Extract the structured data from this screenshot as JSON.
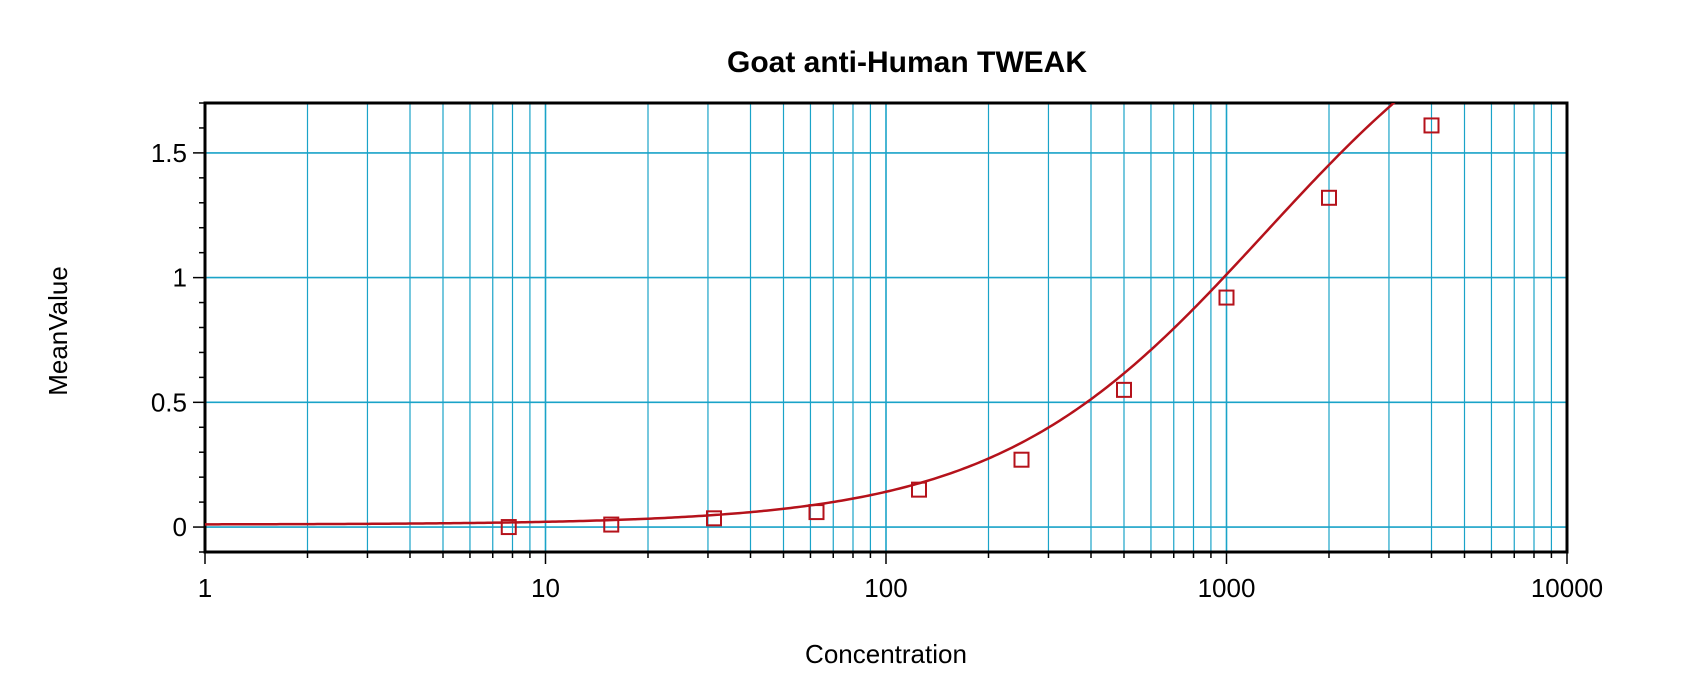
{
  "chart_data": {
    "type": "scatter",
    "title": "Goat anti-Human TWEAK",
    "xlabel": "Concentration",
    "ylabel": "MeanValue",
    "x_scale": "log",
    "xlim": [
      1,
      10000
    ],
    "ylim": [
      -0.1,
      1.7
    ],
    "x_ticks": [
      1,
      10,
      100,
      1000,
      10000
    ],
    "x_tick_labels": [
      "1",
      "10",
      "100",
      "1000",
      "10000"
    ],
    "y_ticks": [
      0,
      0.5,
      1,
      1.5
    ],
    "y_tick_labels": [
      "0",
      "0.5",
      "1",
      "1.5"
    ],
    "grid": true,
    "colors": {
      "grid": "#1aa3c8",
      "series": "#b5121b",
      "frame": "#000000"
    },
    "series": [
      {
        "kind": "points",
        "marker": "square",
        "x": [
          7.8,
          15.6,
          31.25,
          62.5,
          125,
          250,
          500,
          1000,
          2000,
          4000
        ],
        "y": [
          0.0,
          0.01,
          0.035,
          0.06,
          0.15,
          0.27,
          0.55,
          0.92,
          1.32,
          1.61
        ]
      },
      {
        "kind": "fitted-curve",
        "model": "4PL",
        "params": {
          "A": 0.01,
          "B": 1.1,
          "C": 1300,
          "D": 2.35
        }
      }
    ]
  }
}
